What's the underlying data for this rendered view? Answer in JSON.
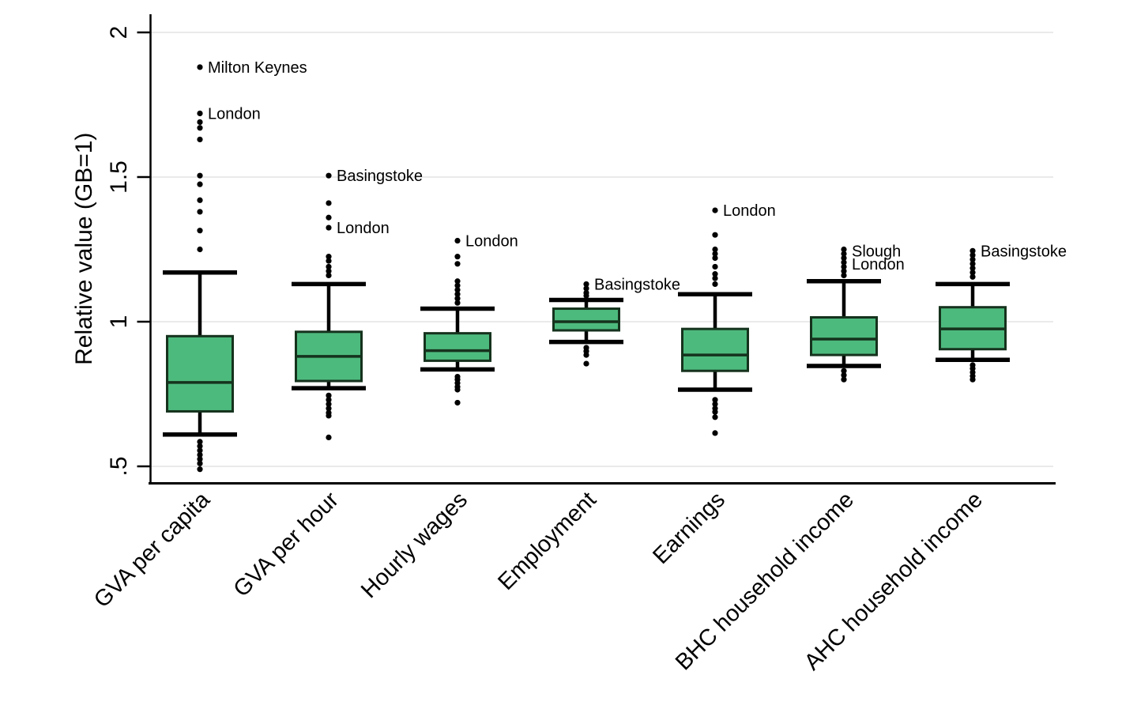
{
  "chart_data": {
    "type": "box",
    "title": "",
    "xlabel": "",
    "ylabel": "Relative value (GB=1)",
    "ylim": [
      0.45,
      2.07
    ],
    "yticks": [
      {
        "value": 0.5,
        "label": ".5"
      },
      {
        "value": 1.0,
        "label": "1"
      },
      {
        "value": 1.5,
        "label": "1.5"
      },
      {
        "value": 2.0,
        "label": "2"
      }
    ],
    "grid": "horizontal",
    "legend": false,
    "categories": [
      "GVA per capita",
      "GVA per hour",
      "Hourly wages",
      "Employment",
      "Earnings",
      "BHC household income",
      "AHC household income"
    ],
    "boxes": [
      {
        "category": "GVA per capita",
        "whisker_low": 0.61,
        "q1": 0.69,
        "median": 0.79,
        "q3": 0.95,
        "whisker_high": 1.17,
        "outliers_high": [
          1.88,
          1.72,
          1.69,
          1.67,
          1.63,
          1.505,
          1.475,
          1.42,
          1.38,
          1.315,
          1.25
        ],
        "outliers_low": [
          0.585,
          0.57,
          0.555,
          0.54,
          0.525,
          0.51,
          0.49
        ],
        "labels": [
          {
            "text": "Milton Keynes",
            "value": 1.88
          },
          {
            "text": "London",
            "value": 1.72
          }
        ]
      },
      {
        "category": "GVA per hour",
        "whisker_low": 0.77,
        "q1": 0.795,
        "median": 0.88,
        "q3": 0.965,
        "whisker_high": 1.13,
        "outliers_high": [
          1.505,
          1.41,
          1.36,
          1.325,
          1.225,
          1.21,
          1.19,
          1.175,
          1.16
        ],
        "outliers_low": [
          0.745,
          0.73,
          0.715,
          0.7,
          0.685,
          0.675,
          0.6
        ],
        "labels": [
          {
            "text": "Basingstoke",
            "value": 1.505
          },
          {
            "text": "London",
            "value": 1.325
          }
        ]
      },
      {
        "category": "Hourly wages",
        "whisker_low": 0.835,
        "q1": 0.865,
        "median": 0.9,
        "q3": 0.96,
        "whisker_high": 1.045,
        "outliers_high": [
          1.28,
          1.225,
          1.2,
          1.14,
          1.125,
          1.11,
          1.095,
          1.08,
          1.065
        ],
        "outliers_low": [
          0.81,
          0.8,
          0.788,
          0.775,
          0.765,
          0.72
        ],
        "labels": [
          {
            "text": "London",
            "value": 1.28
          }
        ]
      },
      {
        "category": "Employment",
        "whisker_low": 0.93,
        "q1": 0.97,
        "median": 1.0,
        "q3": 1.045,
        "whisker_high": 1.075,
        "outliers_high": [
          1.13,
          1.115,
          1.1,
          1.09
        ],
        "outliers_low": [
          0.91,
          0.898,
          0.885,
          0.855
        ],
        "labels": [
          {
            "text": "Basingstoke",
            "value": 1.13
          }
        ]
      },
      {
        "category": "Earnings",
        "whisker_low": 0.765,
        "q1": 0.83,
        "median": 0.885,
        "q3": 0.975,
        "whisker_high": 1.095,
        "outliers_high": [
          1.385,
          1.3,
          1.25,
          1.235,
          1.22,
          1.19,
          1.165,
          1.15,
          1.13
        ],
        "outliers_low": [
          0.73,
          0.715,
          0.7,
          0.688,
          0.67,
          0.615
        ],
        "labels": [
          {
            "text": "London",
            "value": 1.385
          }
        ]
      },
      {
        "category": "BHC household income",
        "whisker_low": 0.847,
        "q1": 0.885,
        "median": 0.94,
        "q3": 1.015,
        "whisker_high": 1.14,
        "outliers_high": [
          1.25,
          1.235,
          1.22,
          1.205,
          1.19,
          1.175,
          1.16
        ],
        "outliers_low": [
          0.83,
          0.815,
          0.8
        ],
        "labels": [
          {
            "text": "Slough",
            "value": 1.245
          },
          {
            "text": "London",
            "value": 1.2
          }
        ]
      },
      {
        "category": "AHC household income",
        "whisker_low": 0.868,
        "q1": 0.905,
        "median": 0.975,
        "q3": 1.05,
        "whisker_high": 1.13,
        "outliers_high": [
          1.245,
          1.23,
          1.215,
          1.2,
          1.185,
          1.17,
          1.155
        ],
        "outliers_low": [
          0.85,
          0.838,
          0.825,
          0.812,
          0.8
        ],
        "labels": [
          {
            "text": "Basingstoke",
            "value": 1.245
          }
        ]
      }
    ],
    "colors": {
      "box_fill": "#4dba7d",
      "box_border": "#15321d",
      "whisker": "#000000",
      "outlier": "#000000",
      "grid": "#eaeaea",
      "axis": "#000000",
      "text": "#000000"
    }
  }
}
